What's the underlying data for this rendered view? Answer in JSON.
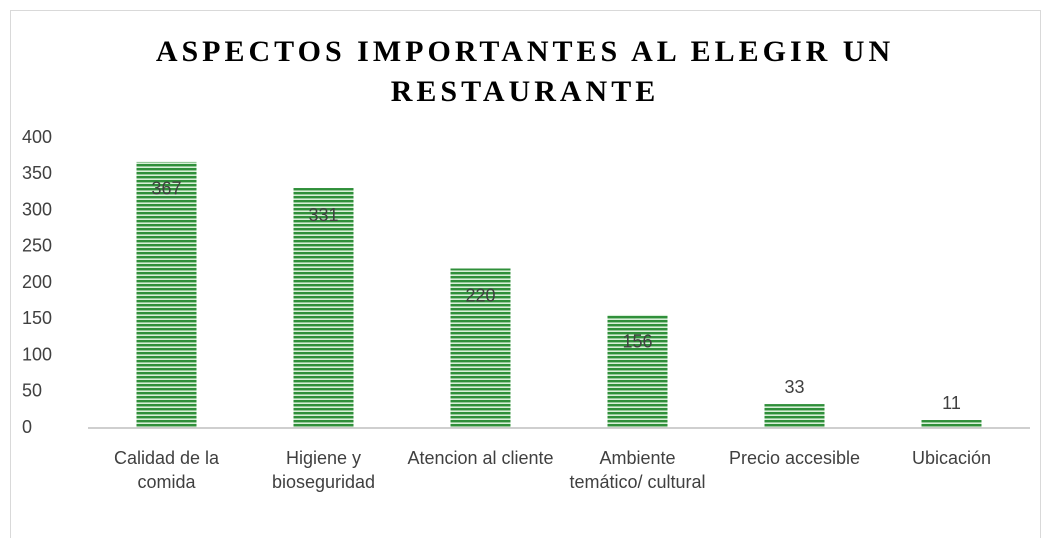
{
  "chart_data": {
    "type": "bar",
    "title": "ASPECTOS IMPORTANTES AL ELEGIR UN RESTAURANTE",
    "categories": [
      "Calidad de la comida",
      "Higiene y bioseguridad",
      "Atencion al cliente",
      "Ambiente temático/ cultural",
      "Precio accesible",
      "Ubicación"
    ],
    "values": [
      367,
      331,
      220,
      156,
      33,
      11
    ],
    "color": "#2f8f3a",
    "ylim": [
      0,
      400
    ],
    "yticks": [
      0,
      50,
      100,
      150,
      200,
      250,
      300,
      350,
      400
    ],
    "grid": false
  }
}
